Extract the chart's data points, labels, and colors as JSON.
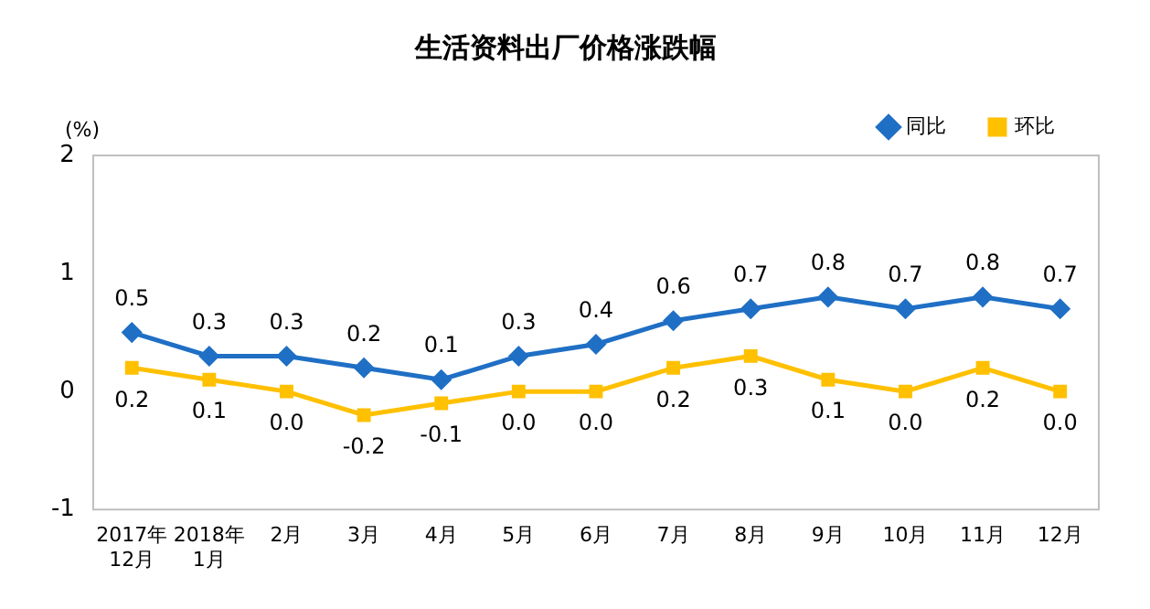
{
  "chart_data": {
    "type": "line",
    "title": "生活资料出厂价格涨跌幅",
    "ylabel": "(%)",
    "categories": [
      "2017年\n12月",
      "2018年\n1月",
      "2月",
      "3月",
      "4月",
      "5月",
      "6月",
      "7月",
      "8月",
      "9月",
      "10月",
      "11月",
      "12月"
    ],
    "series": [
      {
        "name": "同比",
        "color": "#1f6fc5",
        "marker": "diamond",
        "values": [
          0.5,
          0.3,
          0.3,
          0.2,
          0.1,
          0.3,
          0.4,
          0.6,
          0.7,
          0.8,
          0.7,
          0.8,
          0.7
        ],
        "value_labels": [
          "0.5",
          "0.3",
          "0.3",
          "0.2",
          "0.1",
          "0.3",
          "0.4",
          "0.6",
          "0.7",
          "0.8",
          "0.7",
          "0.8",
          "0.7"
        ]
      },
      {
        "name": "环比",
        "color": "#ffc000",
        "marker": "square",
        "values": [
          0.2,
          0.1,
          0.0,
          -0.2,
          -0.1,
          0.0,
          0.0,
          0.2,
          0.3,
          0.1,
          0.0,
          0.2,
          0.0
        ],
        "value_labels": [
          "0.2",
          "0.1",
          "0.0",
          "-0.2",
          "-0.1",
          "0.0",
          "0.0",
          "0.2",
          "0.3",
          "0.1",
          "0.0",
          "0.2",
          "0.0"
        ]
      }
    ],
    "ylim": [
      -1,
      2
    ],
    "yticks": [
      -1,
      0,
      1,
      2
    ],
    "grid": false,
    "legend": "top right"
  }
}
